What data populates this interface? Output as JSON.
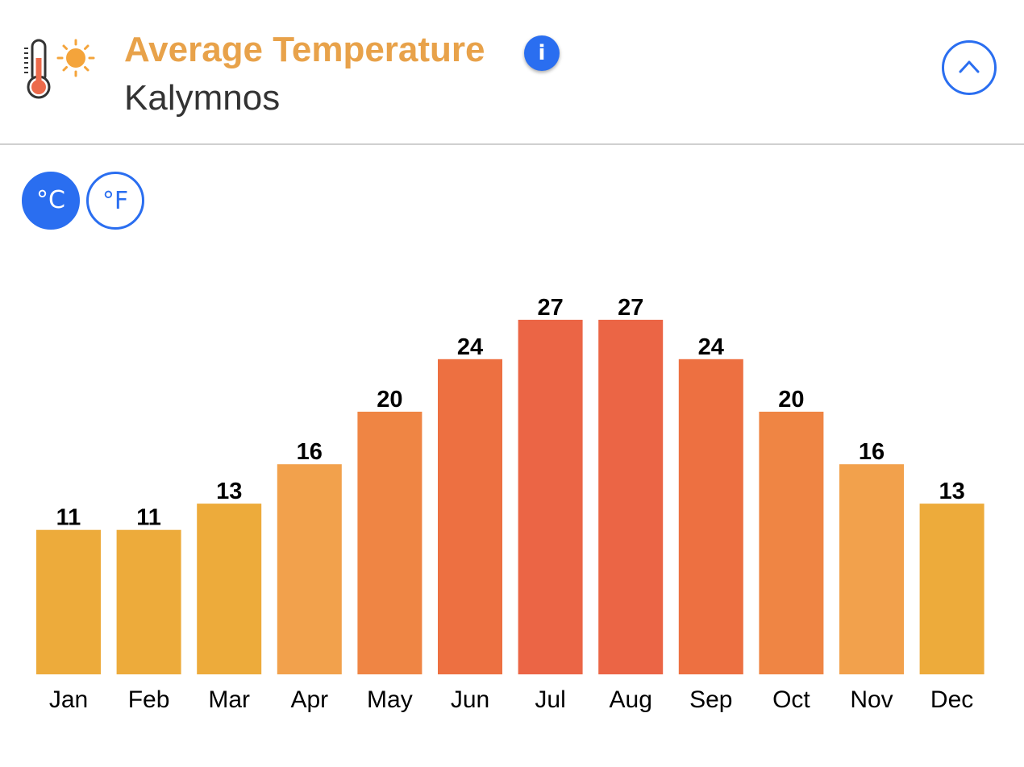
{
  "header": {
    "title": "Average Temperature",
    "subtitle": "Kalymnos",
    "info_label": "i",
    "icon": "thermometer-sun-icon",
    "collapse_icon": "chevron-up-icon"
  },
  "units": {
    "celsius_label": "°C",
    "fahrenheit_label": "°F",
    "selected": "°C"
  },
  "colors": {
    "accent": "#2a6ef0",
    "title": "#e8a24a"
  },
  "chart_data": {
    "type": "bar",
    "title": "Average Temperature",
    "subtitle": "Kalymnos",
    "unit": "°C",
    "categories": [
      "Jan",
      "Feb",
      "Mar",
      "Apr",
      "May",
      "Jun",
      "Jul",
      "Aug",
      "Sep",
      "Oct",
      "Nov",
      "Dec"
    ],
    "values": [
      11,
      11,
      13,
      16,
      20,
      24,
      27,
      27,
      24,
      20,
      16,
      13
    ],
    "colors": [
      "#edab3b",
      "#edab3b",
      "#edab3b",
      "#f2a14c",
      "#ef8544",
      "#ed7041",
      "#eb6545",
      "#eb6545",
      "#ed7041",
      "#ef8544",
      "#f2a14c",
      "#edab3b"
    ],
    "xlabel": "",
    "ylabel": "",
    "grid": false
  }
}
